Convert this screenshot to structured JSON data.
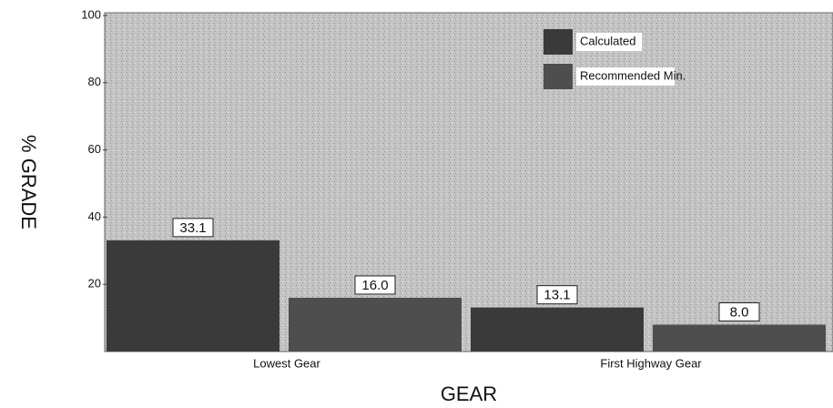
{
  "chart_data": {
    "type": "bar",
    "y_label": "% GRADE",
    "x_label": "GEAR",
    "categories": [
      "Lowest Gear",
      "First Highway Gear"
    ],
    "series": [
      {
        "name": "Calculated",
        "color": "#3a3a3a",
        "values": [
          33.1,
          13.1
        ],
        "value_labels": [
          "33.1",
          "13.1"
        ]
      },
      {
        "name": "Recommended Min.",
        "color": "#4e4e4e",
        "values": [
          16.0,
          8.0
        ],
        "value_labels": [
          "16.0",
          "8.0"
        ]
      }
    ],
    "ylim": [
      0,
      100
    ],
    "yticks": [
      20,
      40,
      60,
      80,
      100
    ],
    "legend": "top-right"
  }
}
